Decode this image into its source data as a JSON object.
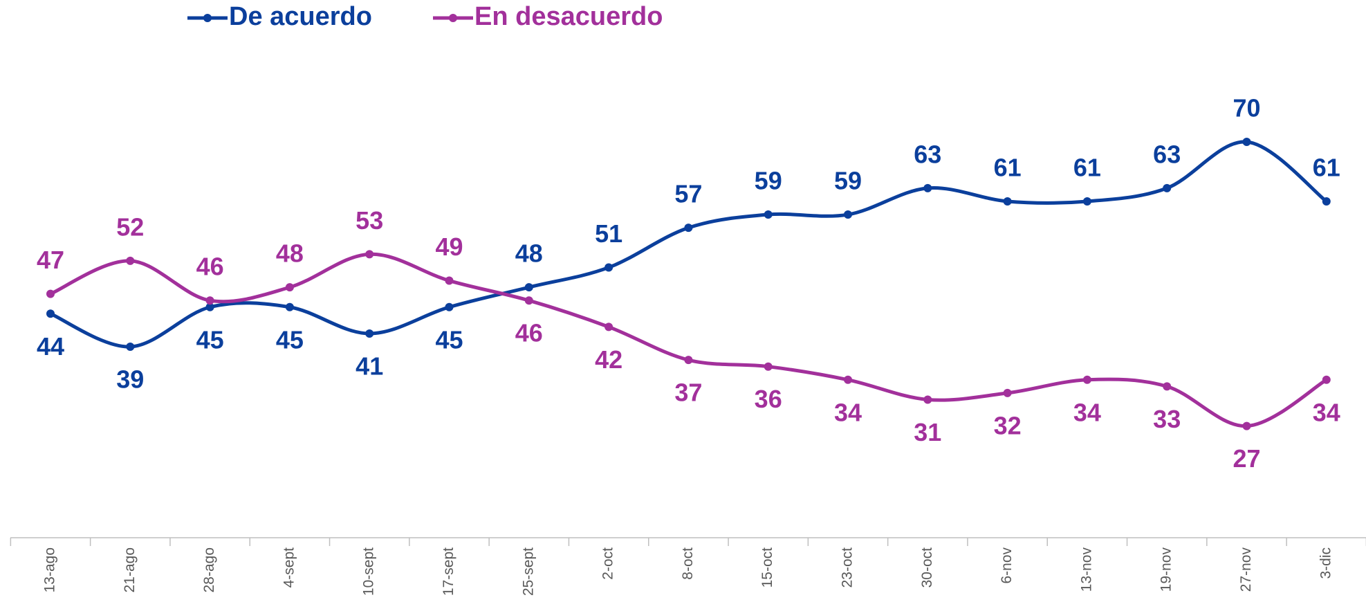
{
  "chart_data": {
    "type": "line",
    "categories": [
      "13-ago",
      "21-ago",
      "28-ago",
      "4-sept",
      "10-sept",
      "17-sept",
      "25-sept",
      "2-oct",
      "8-oct",
      "15-oct",
      "23-oct",
      "30-oct",
      "6-nov",
      "13-nov",
      "19-nov",
      "27-nov",
      "3-dic"
    ],
    "series": [
      {
        "name": "De acuerdo",
        "color": "#0b3f9c",
        "values": [
          44,
          39,
          45,
          45,
          41,
          45,
          48,
          51,
          57,
          59,
          59,
          63,
          61,
          61,
          63,
          70,
          61
        ]
      },
      {
        "name": "En desacuerdo",
        "color": "#a2309b",
        "values": [
          47,
          52,
          46,
          48,
          53,
          49,
          46,
          42,
          37,
          36,
          34,
          31,
          32,
          34,
          33,
          27,
          34
        ]
      }
    ],
    "legend": "top-left",
    "smooth": true
  }
}
